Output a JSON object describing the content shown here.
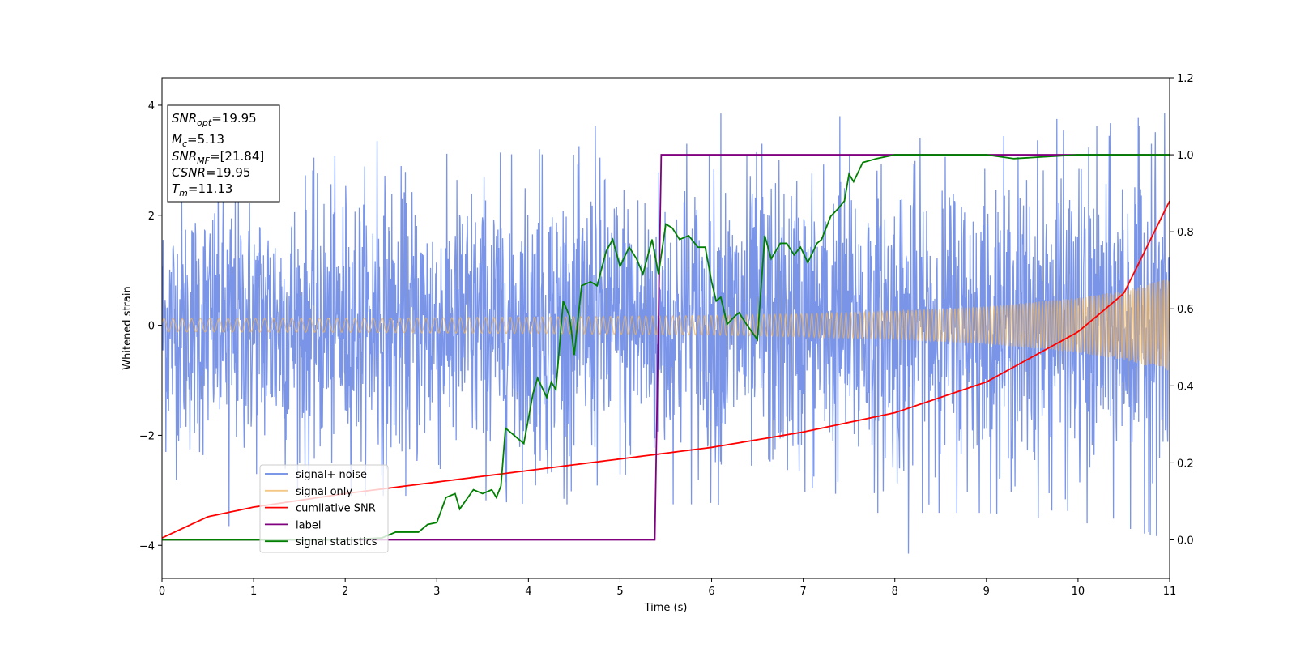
{
  "chart_data": {
    "type": "line",
    "xlabel": "Time (s)",
    "ylabel": "Whitened strain",
    "xlim": [
      0,
      11
    ],
    "ylim": [
      -4.6,
      4.5
    ],
    "y2lim": [
      -0.1,
      1.2
    ],
    "x_ticks": [
      "0",
      "1",
      "2",
      "3",
      "4",
      "5",
      "6",
      "7",
      "8",
      "9",
      "10",
      "11"
    ],
    "y_ticks": [
      "4",
      "2",
      "0",
      "−2",
      "−4"
    ],
    "y2_ticks": [
      "1.2",
      "1.0",
      "0.8",
      "0.6",
      "0.4",
      "0.2",
      "0.0"
    ],
    "grid": false,
    "legend_position": "lower-left",
    "annotation": [
      {
        "base": "SNR",
        "sub": "opt",
        "value": "=19.95"
      },
      {
        "base": "M",
        "sub": "c",
        "value": "=5.13"
      },
      {
        "base": "SNR",
        "sub": "MF",
        "value": "=[21.84]"
      },
      {
        "base": "CSNR",
        "sub": "",
        "value": "=19.95"
      },
      {
        "base": "T",
        "sub": "m",
        "value": "=11.13"
      }
    ],
    "series": [
      {
        "name": "signal+ noise",
        "color": "#6c8ae6",
        "axis": "left",
        "envelope_upper": [
          [
            0,
            1.8
          ],
          [
            1,
            1.9
          ],
          [
            2,
            2.0
          ],
          [
            3,
            2.0
          ],
          [
            4,
            2.1
          ],
          [
            5,
            2.1
          ],
          [
            6,
            2.1
          ],
          [
            7,
            2.2
          ],
          [
            8,
            2.2
          ],
          [
            9,
            2.2
          ],
          [
            10,
            2.3
          ],
          [
            11,
            2.5
          ]
        ],
        "envelope_lower": [
          [
            0,
            -1.8
          ],
          [
            1,
            -1.9
          ],
          [
            2,
            -2.0
          ],
          [
            3,
            -2.0
          ],
          [
            4,
            -2.1
          ],
          [
            5,
            -2.1
          ],
          [
            6,
            -2.1
          ],
          [
            7,
            -2.2
          ],
          [
            8,
            -2.2
          ],
          [
            9,
            -2.2
          ],
          [
            10,
            -2.3
          ],
          [
            11,
            -2.5
          ]
        ],
        "notable_peaks": [
          [
            0.73,
            -3.65
          ],
          [
            2.35,
            3.35
          ],
          [
            4.12,
            3.2
          ],
          [
            4.73,
            3.62
          ],
          [
            5.73,
            3.3
          ],
          [
            6.1,
            3.85
          ],
          [
            6.55,
            3.3
          ],
          [
            7.4,
            3.8
          ],
          [
            8.15,
            -4.15
          ],
          [
            9.77,
            3.75
          ],
          [
            10.1,
            -3.6
          ],
          [
            10.8,
            3.3
          ]
        ]
      },
      {
        "name": "signal only",
        "color": "#f0b45c",
        "axis": "left",
        "amplitude": [
          [
            0,
            0.12
          ],
          [
            2,
            0.13
          ],
          [
            4,
            0.15
          ],
          [
            6,
            0.18
          ],
          [
            7,
            0.21
          ],
          [
            8,
            0.26
          ],
          [
            9,
            0.34
          ],
          [
            10,
            0.5
          ],
          [
            10.5,
            0.63
          ],
          [
            11,
            0.85
          ]
        ]
      },
      {
        "name": "cumilative SNR",
        "color": "#ff0000",
        "axis": "right",
        "points": [
          [
            0,
            0.005
          ],
          [
            0.5,
            0.06
          ],
          [
            1,
            0.085
          ],
          [
            2,
            0.12
          ],
          [
            3,
            0.15
          ],
          [
            4,
            0.18
          ],
          [
            5,
            0.21
          ],
          [
            6,
            0.24
          ],
          [
            7,
            0.28
          ],
          [
            8,
            0.33
          ],
          [
            9,
            0.41
          ],
          [
            10,
            0.54
          ],
          [
            10.5,
            0.64
          ],
          [
            11,
            0.88
          ]
        ]
      },
      {
        "name": "label",
        "color": "#800080",
        "axis": "right",
        "points": [
          [
            0,
            0.0
          ],
          [
            5.38,
            0.0
          ],
          [
            5.45,
            1.0
          ],
          [
            11,
            1.0
          ]
        ]
      },
      {
        "name": "signal statistics",
        "color": "#007f00",
        "axis": "right",
        "points": [
          [
            0,
            0.0
          ],
          [
            1.0,
            0.0
          ],
          [
            2.0,
            0.0
          ],
          [
            2.4,
            0.005
          ],
          [
            2.55,
            0.02
          ],
          [
            2.8,
            0.02
          ],
          [
            2.9,
            0.04
          ],
          [
            3.0,
            0.045
          ],
          [
            3.1,
            0.11
          ],
          [
            3.2,
            0.12
          ],
          [
            3.25,
            0.08
          ],
          [
            3.4,
            0.13
          ],
          [
            3.5,
            0.12
          ],
          [
            3.6,
            0.13
          ],
          [
            3.65,
            0.11
          ],
          [
            3.7,
            0.14
          ],
          [
            3.75,
            0.29
          ],
          [
            3.85,
            0.27
          ],
          [
            3.95,
            0.25
          ],
          [
            4.05,
            0.38
          ],
          [
            4.1,
            0.42
          ],
          [
            4.2,
            0.37
          ],
          [
            4.25,
            0.41
          ],
          [
            4.3,
            0.39
          ],
          [
            4.38,
            0.62
          ],
          [
            4.45,
            0.58
          ],
          [
            4.5,
            0.48
          ],
          [
            4.58,
            0.66
          ],
          [
            4.68,
            0.67
          ],
          [
            4.75,
            0.66
          ],
          [
            4.85,
            0.75
          ],
          [
            4.92,
            0.78
          ],
          [
            5.0,
            0.71
          ],
          [
            5.1,
            0.76
          ],
          [
            5.18,
            0.73
          ],
          [
            5.25,
            0.69
          ],
          [
            5.35,
            0.78
          ],
          [
            5.42,
            0.69
          ],
          [
            5.5,
            0.82
          ],
          [
            5.57,
            0.81
          ],
          [
            5.65,
            0.78
          ],
          [
            5.75,
            0.79
          ],
          [
            5.85,
            0.76
          ],
          [
            5.93,
            0.76
          ],
          [
            6.0,
            0.67
          ],
          [
            6.05,
            0.62
          ],
          [
            6.1,
            0.63
          ],
          [
            6.17,
            0.56
          ],
          [
            6.25,
            0.58
          ],
          [
            6.3,
            0.59
          ],
          [
            6.38,
            0.56
          ],
          [
            6.5,
            0.52
          ],
          [
            6.58,
            0.79
          ],
          [
            6.65,
            0.73
          ],
          [
            6.75,
            0.77
          ],
          [
            6.82,
            0.77
          ],
          [
            6.9,
            0.74
          ],
          [
            6.97,
            0.76
          ],
          [
            7.05,
            0.72
          ],
          [
            7.15,
            0.77
          ],
          [
            7.2,
            0.78
          ],
          [
            7.3,
            0.84
          ],
          [
            7.38,
            0.86
          ],
          [
            7.45,
            0.88
          ],
          [
            7.5,
            0.95
          ],
          [
            7.55,
            0.93
          ],
          [
            7.65,
            0.98
          ],
          [
            7.8,
            0.99
          ],
          [
            8.0,
            1.0
          ],
          [
            9.0,
            1.0
          ],
          [
            9.3,
            0.99
          ],
          [
            10.0,
            1.0
          ],
          [
            11.0,
            1.0
          ]
        ]
      }
    ]
  }
}
